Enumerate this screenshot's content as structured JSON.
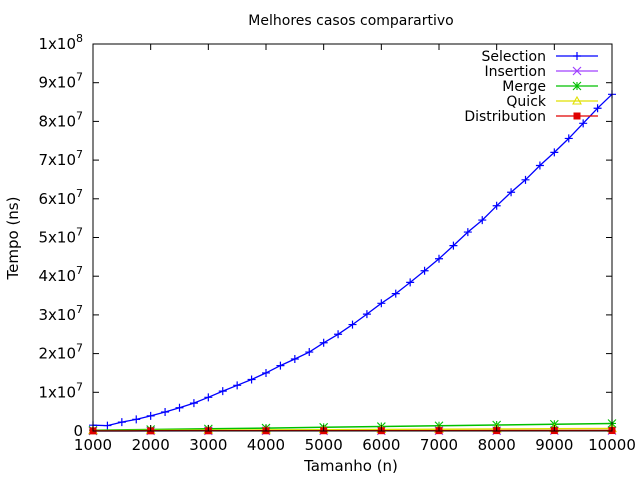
{
  "chart_data": {
    "type": "scatter",
    "title": "Melhores casos comparartivo",
    "xlabel": "Tamanho (n)",
    "ylabel": "Tempo (ns)",
    "xlim": [
      1000,
      10000
    ],
    "ylim": [
      0,
      100000000
    ],
    "x_ticks": [
      1000,
      2000,
      3000,
      4000,
      5000,
      6000,
      7000,
      8000,
      9000,
      10000
    ],
    "x_tick_labels": [
      "1000",
      "2000",
      "3000",
      "4000",
      "5000",
      "6000",
      "7000",
      "8000",
      "9000",
      "10000"
    ],
    "y_ticks": [
      0,
      10000000,
      20000000,
      30000000,
      40000000,
      50000000,
      60000000,
      70000000,
      80000000,
      90000000,
      100000000
    ],
    "y_tick_labels": [
      {
        "base": "0",
        "exp": ""
      },
      {
        "base": "1x10",
        "exp": "7"
      },
      {
        "base": "2x10",
        "exp": "7"
      },
      {
        "base": "3x10",
        "exp": "7"
      },
      {
        "base": "4x10",
        "exp": "7"
      },
      {
        "base": "5x10",
        "exp": "7"
      },
      {
        "base": "6x10",
        "exp": "7"
      },
      {
        "base": "7x10",
        "exp": "7"
      },
      {
        "base": "8x10",
        "exp": "7"
      },
      {
        "base": "9x10",
        "exp": "7"
      },
      {
        "base": "1x10",
        "exp": "8"
      }
    ],
    "grid": false,
    "legend_position": "top-right",
    "series": [
      {
        "name": "Selection",
        "color": "#0000ff",
        "marker": "plus",
        "line": true,
        "x": [
          1000,
          1250,
          1500,
          1750,
          2000,
          2250,
          2500,
          2750,
          3000,
          3250,
          3500,
          3750,
          4000,
          4250,
          4500,
          4750,
          5000,
          5250,
          5500,
          5750,
          6000,
          6250,
          6500,
          6750,
          7000,
          7250,
          7500,
          7750,
          8000,
          8250,
          8500,
          8750,
          9000,
          9250,
          9500,
          9750,
          10000
        ],
        "y": [
          1500000,
          1400000,
          2300000,
          3000000,
          3900000,
          4900000,
          6000000,
          7200000,
          8700000,
          10300000,
          11800000,
          13300000,
          15000000,
          16900000,
          18600000,
          20400000,
          22800000,
          25000000,
          27500000,
          30200000,
          33000000,
          35500000,
          38400000,
          41400000,
          44500000,
          47900000,
          51400000,
          54500000,
          58200000,
          61700000,
          64900000,
          68600000,
          72000000,
          75600000,
          79500000,
          83400000,
          87000000
        ]
      },
      {
        "name": "Insertion",
        "color": "#a040ff",
        "marker": "x",
        "line": true,
        "x": [
          1000,
          2000,
          3000,
          4000,
          5000,
          6000,
          7000,
          8000,
          9000,
          10000
        ],
        "y": [
          20000,
          30000,
          40000,
          50000,
          60000,
          70000,
          80000,
          90000,
          100000,
          110000
        ]
      },
      {
        "name": "Merge",
        "color": "#00c000",
        "marker": "star",
        "line": true,
        "x": [
          1000,
          2000,
          3000,
          4000,
          5000,
          6000,
          7000,
          8000,
          9000,
          10000
        ],
        "y": [
          200000,
          380000,
          560000,
          760000,
          950000,
          1150000,
          1350000,
          1550000,
          1750000,
          1950000
        ]
      },
      {
        "name": "Quick",
        "color": "#e0e000",
        "marker": "triangle",
        "line": true,
        "x": [
          1000,
          2000,
          3000,
          4000,
          5000,
          6000,
          7000,
          8000,
          9000,
          10000
        ],
        "y": [
          100000,
          160000,
          220000,
          280000,
          340000,
          400000,
          460000,
          520000,
          580000,
          640000
        ]
      },
      {
        "name": "Distribution",
        "color": "#e00000",
        "marker": "square",
        "line": true,
        "x": [
          1000,
          2000,
          3000,
          4000,
          5000,
          6000,
          7000,
          8000,
          9000,
          10000
        ],
        "y": [
          30000,
          40000,
          50000,
          60000,
          70000,
          80000,
          90000,
          100000,
          110000,
          120000
        ]
      }
    ]
  }
}
